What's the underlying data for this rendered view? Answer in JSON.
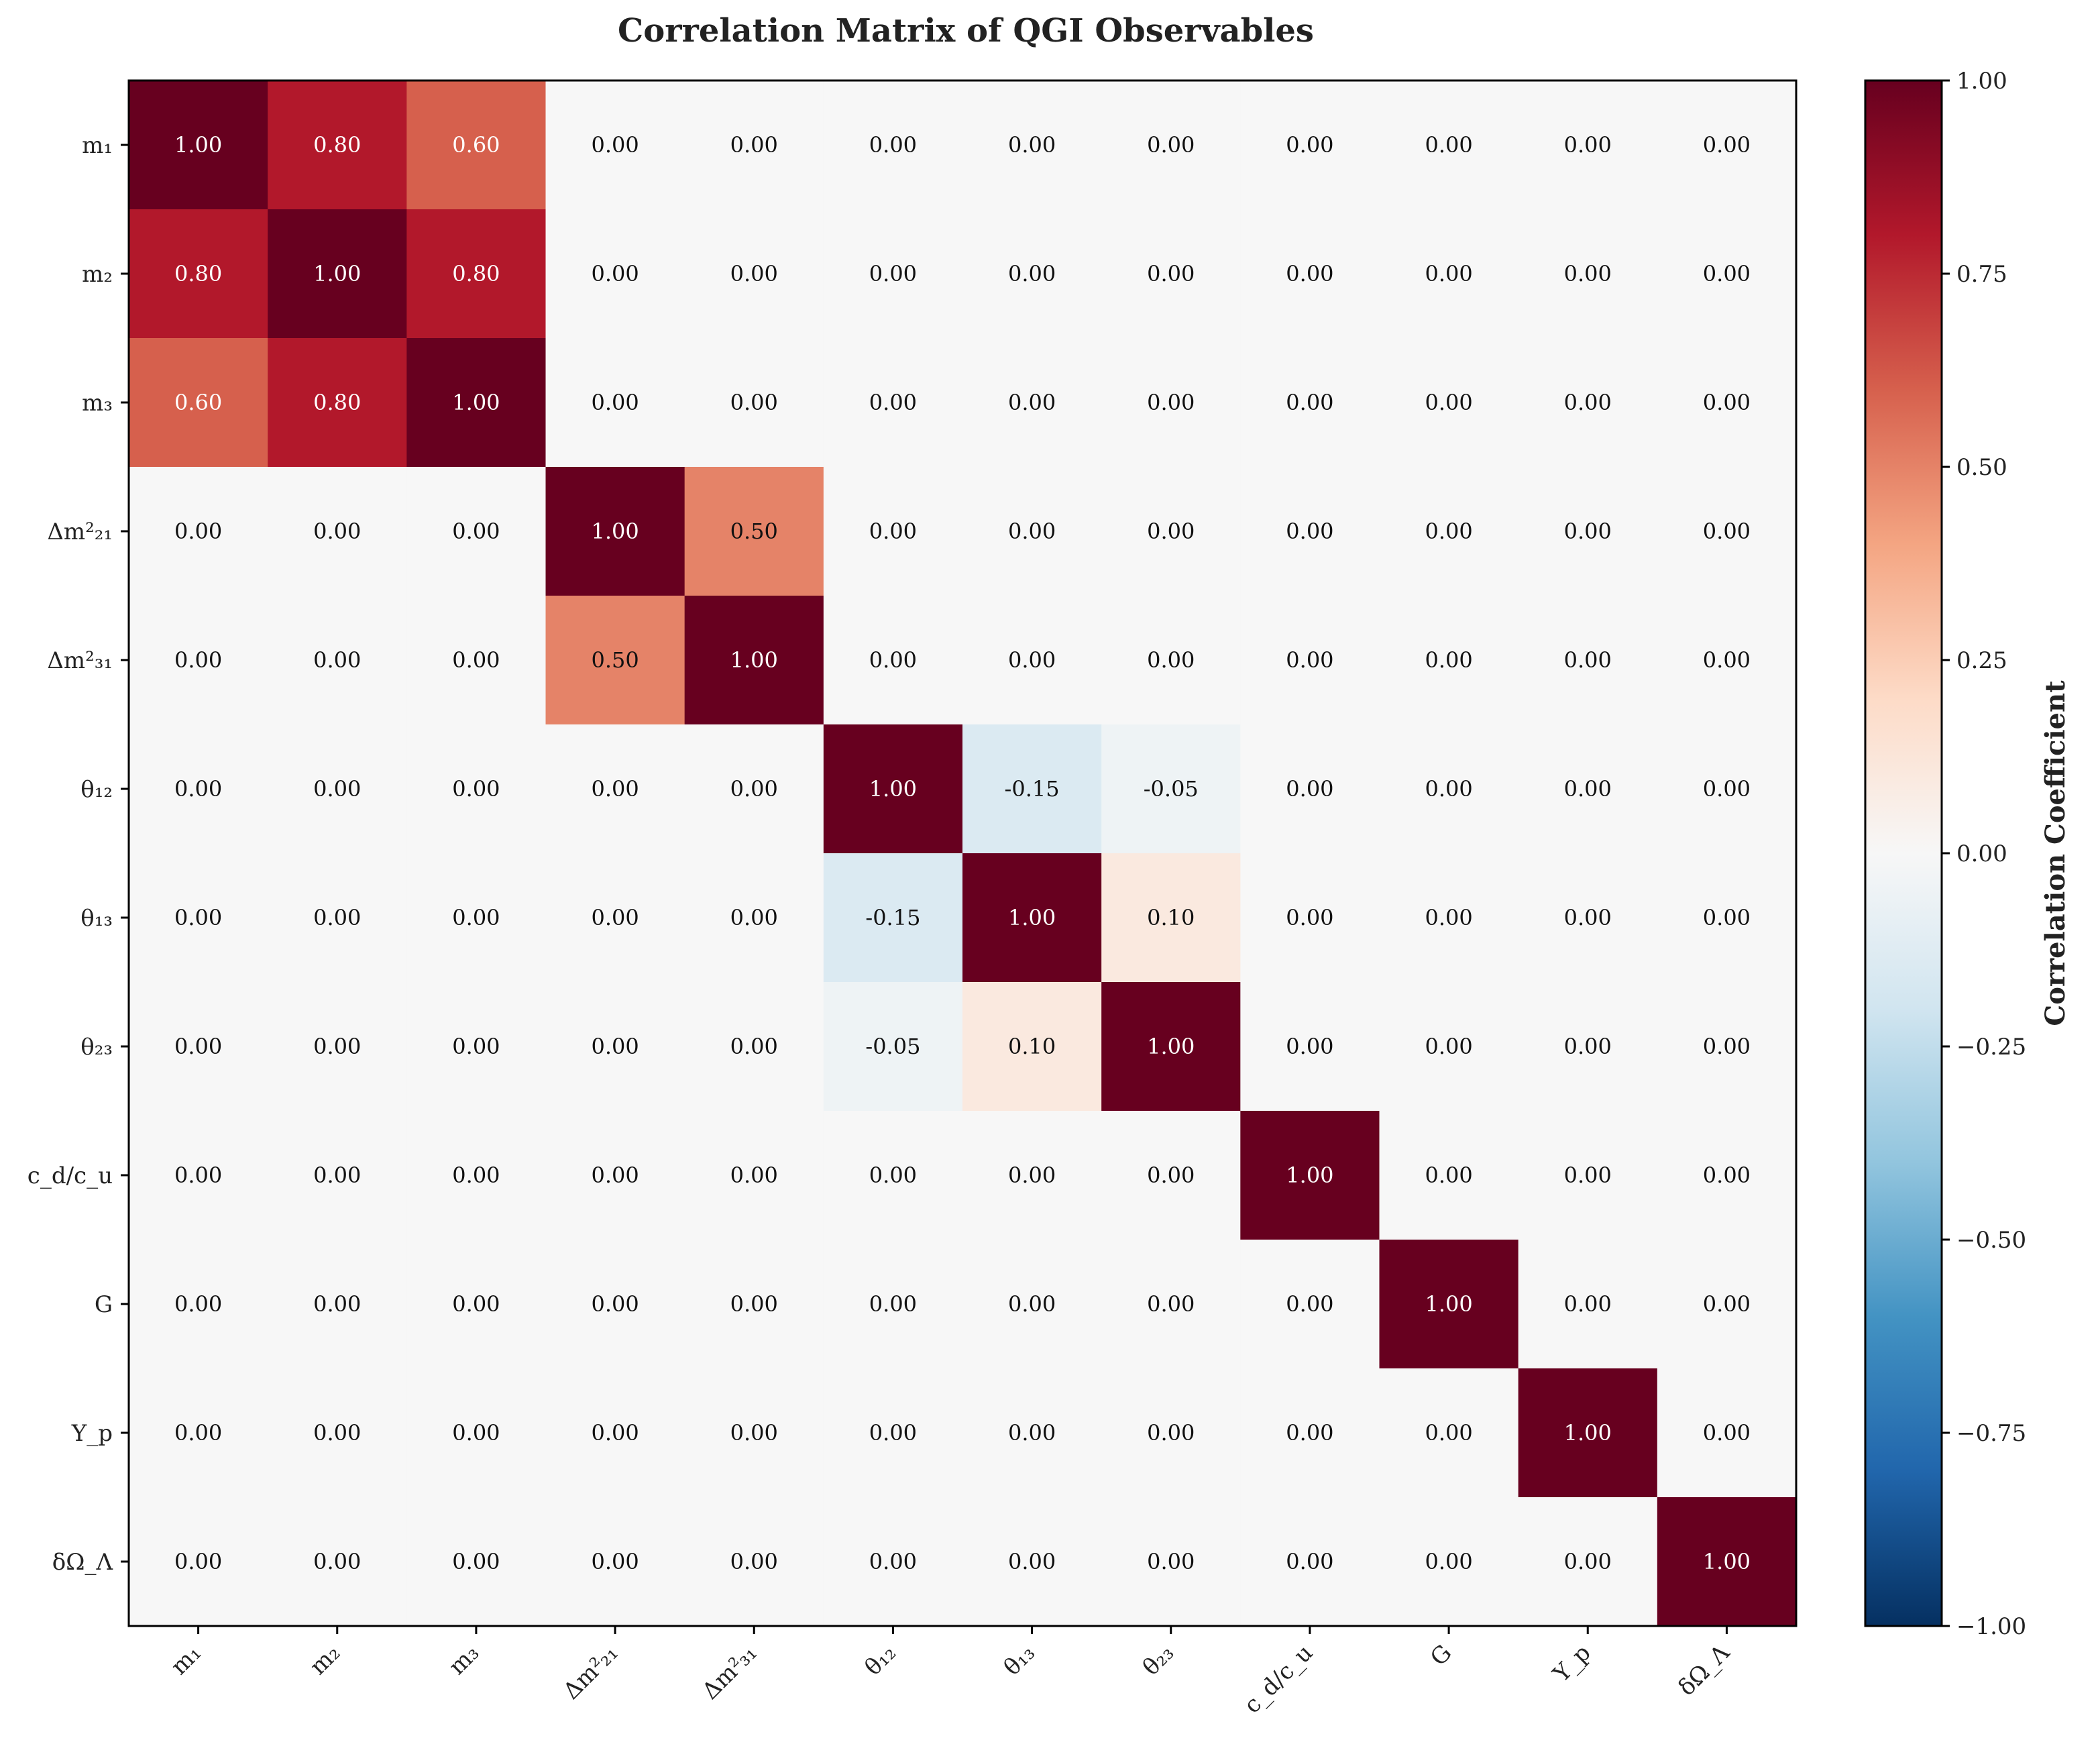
{
  "chart_data": {
    "type": "heatmap",
    "title": "Correlation Matrix of QGI Observables",
    "labels": [
      "m₁",
      "m₂",
      "m₃",
      "Δm²₂₁",
      "Δm²₃₁",
      "θ₁₂",
      "θ₁₃",
      "θ₂₃",
      "c_d/c_u",
      "G",
      "Y_p",
      "δΩ_Λ"
    ],
    "matrix": [
      [
        1.0,
        0.8,
        0.6,
        0.0,
        0.0,
        0.0,
        0.0,
        0.0,
        0.0,
        0.0,
        0.0,
        0.0
      ],
      [
        0.8,
        1.0,
        0.8,
        0.0,
        0.0,
        0.0,
        0.0,
        0.0,
        0.0,
        0.0,
        0.0,
        0.0
      ],
      [
        0.6,
        0.8,
        1.0,
        0.0,
        0.0,
        0.0,
        0.0,
        0.0,
        0.0,
        0.0,
        0.0,
        0.0
      ],
      [
        0.0,
        0.0,
        0.0,
        1.0,
        0.5,
        0.0,
        0.0,
        0.0,
        0.0,
        0.0,
        0.0,
        0.0
      ],
      [
        0.0,
        0.0,
        0.0,
        0.5,
        1.0,
        0.0,
        0.0,
        0.0,
        0.0,
        0.0,
        0.0,
        0.0
      ],
      [
        0.0,
        0.0,
        0.0,
        0.0,
        0.0,
        1.0,
        -0.15,
        -0.05,
        0.0,
        0.0,
        0.0,
        0.0
      ],
      [
        0.0,
        0.0,
        0.0,
        0.0,
        0.0,
        -0.15,
        1.0,
        0.1,
        0.0,
        0.0,
        0.0,
        0.0
      ],
      [
        0.0,
        0.0,
        0.0,
        0.0,
        0.0,
        -0.05,
        0.1,
        1.0,
        0.0,
        0.0,
        0.0,
        0.0
      ],
      [
        0.0,
        0.0,
        0.0,
        0.0,
        0.0,
        0.0,
        0.0,
        0.0,
        1.0,
        0.0,
        0.0,
        0.0
      ],
      [
        0.0,
        0.0,
        0.0,
        0.0,
        0.0,
        0.0,
        0.0,
        0.0,
        0.0,
        1.0,
        0.0,
        0.0
      ],
      [
        0.0,
        0.0,
        0.0,
        0.0,
        0.0,
        0.0,
        0.0,
        0.0,
        0.0,
        0.0,
        1.0,
        0.0
      ],
      [
        0.0,
        0.0,
        0.0,
        0.0,
        0.0,
        0.0,
        0.0,
        0.0,
        0.0,
        0.0,
        0.0,
        1.0
      ]
    ],
    "value_format": "2 decimals",
    "colormap": "RdBu_r",
    "vmin": -1.0,
    "vmax": 1.0,
    "colorbar": {
      "label": "Correlation Coefficient",
      "ticks": [
        1.0,
        0.75,
        0.5,
        0.25,
        0.0,
        -0.25,
        -0.5,
        -0.75,
        -1.0
      ],
      "tick_labels": [
        "1.00",
        "0.75",
        "0.50",
        "0.25",
        "0.00",
        "−0.25",
        "−0.50",
        "−0.75",
        "−1.00"
      ]
    },
    "x_tick_rotation": "45 degrees",
    "grid": false
  }
}
